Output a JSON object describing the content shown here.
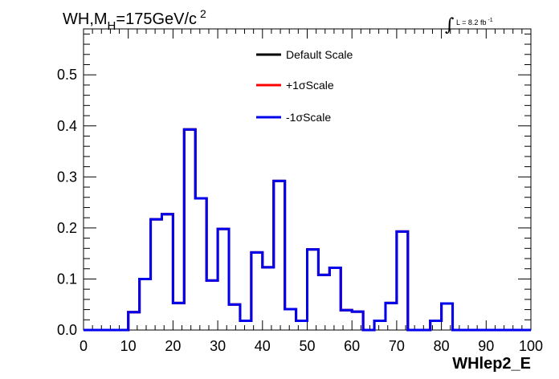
{
  "chart_data": {
    "type": "line",
    "title": {
      "main": "WH,M",
      "sub": "H",
      "rest": "=175GeV/c",
      "sup": "2"
    },
    "lumi": {
      "integral": "∫",
      "text": "L = 8.2 fb",
      "sup": "-1"
    },
    "xlabel": "WHlep2_E",
    "ylabel": "",
    "xlim": [
      0,
      100
    ],
    "ylim": [
      0,
      0.59
    ],
    "x_ticks": [
      "0",
      "10",
      "20",
      "30",
      "40",
      "50",
      "60",
      "70",
      "80",
      "90",
      "100"
    ],
    "y_ticks": [
      "0.0",
      "0.1",
      "0.2",
      "0.3",
      "0.4",
      "0.5"
    ],
    "bin_width": 2.5,
    "bin_edges_start": 0,
    "series": [
      {
        "name": "Default Scale",
        "color": "#000000",
        "values": [
          0,
          0,
          0,
          0,
          0.035,
          0.1,
          0.217,
          0.227,
          0.053,
          0.393,
          0.258,
          0.097,
          0.198,
          0.05,
          0.018,
          0.152,
          0.123,
          0.292,
          0.041,
          0.018,
          0.158,
          0.108,
          0.122,
          0.039,
          0.036,
          0.0,
          0.018,
          0.053,
          0.193,
          0.0,
          0.0,
          0.018,
          0.052,
          0,
          0,
          0,
          0,
          0,
          0,
          0
        ]
      },
      {
        "name": "+1σScale",
        "color": "#ff0000",
        "values": [
          0,
          0,
          0,
          0,
          0.035,
          0.1,
          0.217,
          0.227,
          0.053,
          0.393,
          0.258,
          0.097,
          0.198,
          0.05,
          0.018,
          0.152,
          0.123,
          0.292,
          0.041,
          0.018,
          0.158,
          0.108,
          0.122,
          0.039,
          0.036,
          0.0,
          0.018,
          0.053,
          0.193,
          0.0,
          0.0,
          0.018,
          0.052,
          0,
          0,
          0,
          0,
          0,
          0,
          0
        ]
      },
      {
        "name": "-1σScale",
        "color": "#0000ee",
        "values": [
          0,
          0,
          0,
          0,
          0.035,
          0.1,
          0.217,
          0.227,
          0.053,
          0.393,
          0.258,
          0.097,
          0.198,
          0.05,
          0.018,
          0.152,
          0.123,
          0.292,
          0.041,
          0.018,
          0.158,
          0.108,
          0.122,
          0.039,
          0.036,
          0.0,
          0.018,
          0.053,
          0.193,
          0.0,
          0.0,
          0.018,
          0.052,
          0,
          0,
          0,
          0,
          0,
          0,
          0
        ]
      }
    ],
    "legend_placement": "top-center",
    "grid": false
  }
}
